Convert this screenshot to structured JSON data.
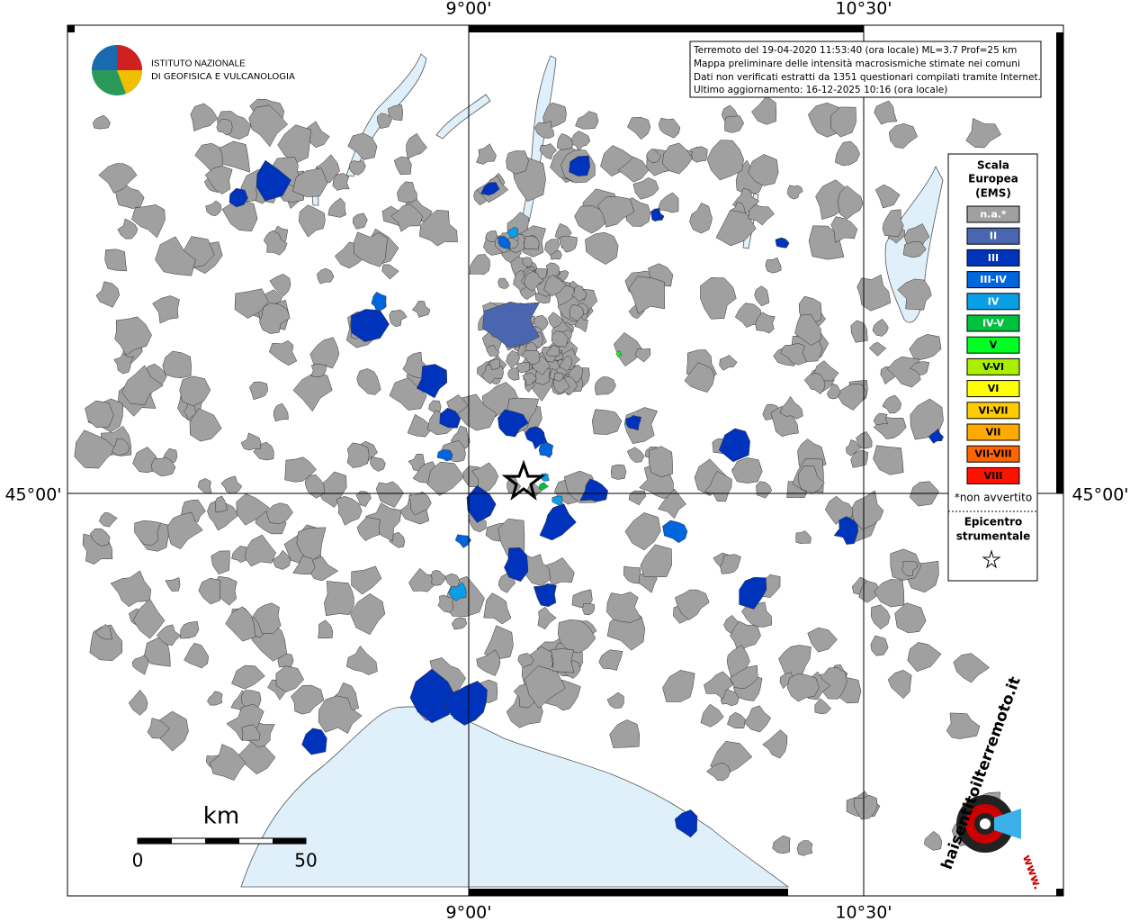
{
  "header": {
    "institute_line1": "ISTITUTO NAZIONALE",
    "institute_line2": "DI GEOFISICA E VULCANOLOGIA"
  },
  "info_box": {
    "lines": [
      "Terremoto del 19-04-2020 11:53:40 (ora locale) ML=3.7 Prof=25 km",
      "Mappa preliminare delle intensità macrosismiche stimate nei comuni",
      "Dati non verificati estratti da 1351 questionari compilati tramite Internet.",
      "Ultimo aggiornamento: 16-12-2025 10:16 (ora locale)"
    ]
  },
  "axes": {
    "top": [
      "9°00'",
      "10°30'"
    ],
    "bottom": [
      "9°00'",
      "10°30'"
    ],
    "left": "45°00'",
    "right": "45°00'"
  },
  "legend": {
    "title": [
      "Scala",
      "Europea",
      "(EMS)"
    ],
    "items": [
      {
        "label": "n.a.*",
        "color": "#a0a0a0"
      },
      {
        "label": "II",
        "color": "#4a66b0"
      },
      {
        "label": "III",
        "color": "#0033bb"
      },
      {
        "label": "III-IV",
        "color": "#0066dd"
      },
      {
        "label": "IV",
        "color": "#0a9ee6"
      },
      {
        "label": "IV-V",
        "color": "#00c040"
      },
      {
        "label": "V",
        "color": "#00ff22"
      },
      {
        "label": "V-VI",
        "color": "#aaee00"
      },
      {
        "label": "VI",
        "color": "#ffff00"
      },
      {
        "label": "VI-VII",
        "color": "#ffcc00"
      },
      {
        "label": "VII",
        "color": "#ffaa00"
      },
      {
        "label": "VII-VIII",
        "color": "#ff6600"
      },
      {
        "label": "VIII",
        "color": "#ff1100"
      }
    ],
    "note": "*non avvertito",
    "epicenter": [
      "Epicentro",
      "strumentale"
    ]
  },
  "scale_bar": {
    "unit": "km",
    "start": "0",
    "end": "50"
  },
  "logo2": {
    "text": "haisentitoilterremoto.it",
    "prefix": "www."
  }
}
